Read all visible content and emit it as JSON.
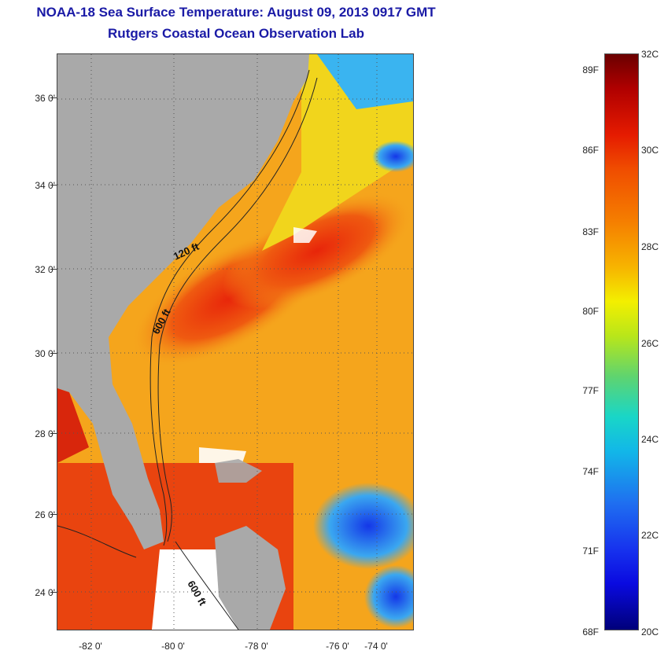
{
  "title_line1": "NOAA-18 Sea Surface Temperature:  August 09, 2013 0917 GMT",
  "title_line2": "Rutgers Coastal Ocean Observation Lab",
  "lat_labels": [
    "36 0'",
    "34 0'",
    "32 0'",
    "30 0'",
    "28 0'",
    "26 0'",
    "24 0'"
  ],
  "lon_labels": [
    "-82 0'",
    "-80 0'",
    "-78 0'",
    "-76 0'",
    "-74 0'"
  ],
  "contour_labels": {
    "shelf_120": "120 ft",
    "shelf_600": "600 ft",
    "keys_600": "600 ft"
  },
  "colorbar": {
    "fahrenheit": [
      "89F",
      "86F",
      "83F",
      "80F",
      "77F",
      "74F",
      "71F",
      "68F"
    ],
    "celsius": [
      "32C",
      "30C",
      "28C",
      "26C",
      "24C",
      "22C",
      "20C"
    ],
    "range_c": [
      20,
      32
    ],
    "colors_hex": {
      "land": "#a9a9a9",
      "cloud": "#ffffff",
      "warm_core": "#e8320a",
      "mid": "#f5a01a",
      "cool": "#1733ee"
    }
  }
}
